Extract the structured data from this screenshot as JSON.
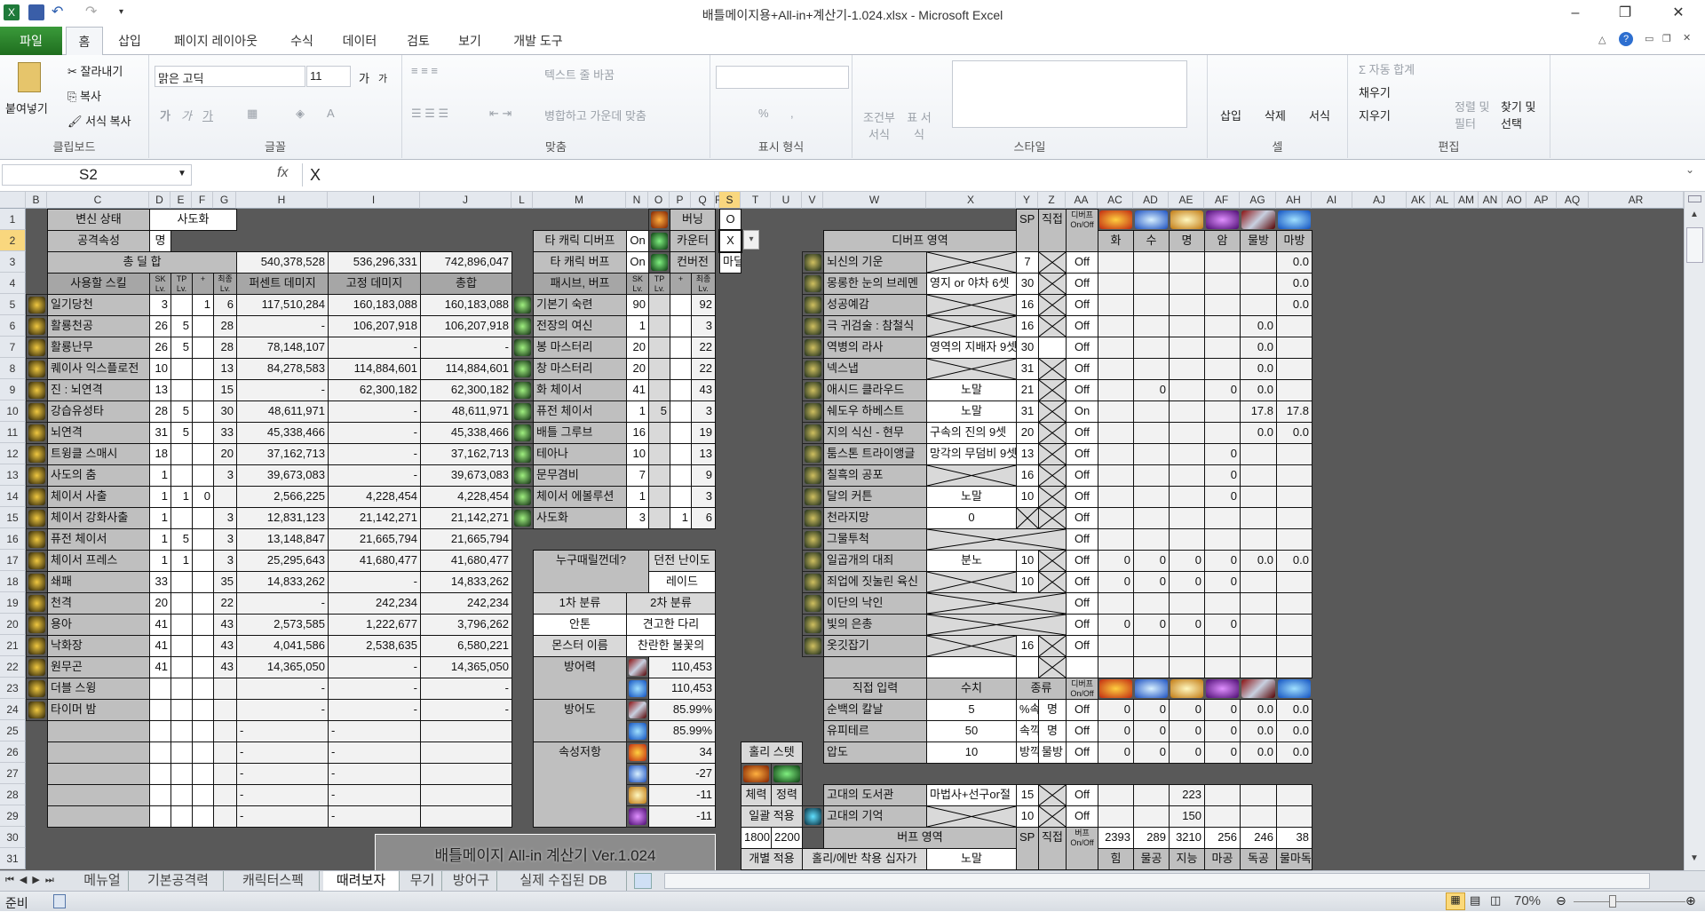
{
  "window": {
    "title": "배틀메이지용+All-in+계산기-1.024.xlsx  -  Microsoft Excel",
    "minimize": "–",
    "restore": "❐",
    "close": "✕"
  },
  "ribbon_tabs": [
    "파일",
    "홈",
    "삽입",
    "페이지 레이아웃",
    "수식",
    "데이터",
    "검토",
    "보기",
    "개발 도구"
  ],
  "ribbon": {
    "clipboard": {
      "paste": "붙여넣기",
      "cut": "잘라내기",
      "copy": "복사",
      "format_painter": "서식 복사",
      "label": "클립보드"
    },
    "font": {
      "name": "맑은 고딕",
      "size": "11",
      "grow": "가",
      "shrink": "가",
      "bold": "가",
      "italic": "가",
      "underline": "가",
      "label": "글꼴"
    },
    "alignment": {
      "wrap": "텍스트 줄 바꿈",
      "merge": "병합하고 가운데 맞춤",
      "label": "맞춤"
    },
    "number": {
      "format": "",
      "percent": "%",
      "comma": ",",
      "label": "표시 형식"
    },
    "styles": {
      "conditional": "조건부 서식",
      "table": "표 서식",
      "label": "스타일"
    },
    "cells": {
      "insert": "삽입",
      "delete": "삭제",
      "format": "서식",
      "label": "셀"
    },
    "editing": {
      "autosum": "Σ 자동 합계",
      "fill": "채우기",
      "clear": "지우기",
      "sort": "정렬 및 필터",
      "find": "찾기 및 선택",
      "label": "편집"
    }
  },
  "formula_bar": {
    "name_box": "S2",
    "fx": "fx",
    "value": "X"
  },
  "grid": {
    "columns": [
      "B",
      "C",
      "D",
      "E",
      "F",
      "G",
      "H",
      "I",
      "J",
      "L",
      "M",
      "N",
      "O",
      "P",
      "Q",
      "R",
      "S",
      "T",
      "U",
      "V",
      "W",
      "X",
      "Y",
      "Z",
      "AA",
      "AC",
      "AD",
      "AE",
      "AF",
      "AG",
      "AH",
      "AI",
      "AJ",
      "AK",
      "AL",
      "AM",
      "AN",
      "AO",
      "AP",
      "AQ",
      "AR"
    ],
    "rows": [
      "1",
      "2",
      "3",
      "4",
      "5",
      "6",
      "7",
      "8",
      "9",
      "10",
      "11",
      "12",
      "13",
      "14",
      "15",
      "16",
      "17",
      "18",
      "19",
      "20",
      "21",
      "22",
      "23",
      "24",
      "25",
      "26",
      "27",
      "28",
      "29",
      "30",
      "31"
    ],
    "selected_cell": "S2",
    "dropdown": "▾"
  },
  "icons": {
    "O1": "burning-icon",
    "O2": "counter-icon",
    "O3": "conversion-icon",
    "AC1": "fire-element-icon",
    "AD1": "water-element-icon",
    "AE1": "light-element-icon",
    "AF1": "dark-element-icon",
    "AG1": "physical-defense-icon",
    "AH1": "magic-defense-icon",
    "AC23": "fire-element-icon",
    "AD23": "water-element-icon",
    "AE23": "light-element-icon",
    "AF23": "dark-element-icon",
    "AG23": "physical-defense-icon",
    "AH23": "magic-defense-icon",
    "N22": "physical-defense-icon",
    "N23": "magic-defense-icon",
    "N24": "physical-defense-icon",
    "N25": "magic-defense-icon",
    "N26": "fire-resist-icon",
    "N27": "water-resist-icon",
    "N28": "light-resist-icon",
    "N29": "dark-resist-icon",
    "T27": "stamina-icon",
    "U27": "spirit-icon",
    "V29": "ancient-memory-icon"
  },
  "cells": {
    "C1": "변신 상태",
    "D1": "사도화",
    "C2": "공격속성",
    "D2": "명",
    "C3": "총 딜 합",
    "H3": "540,378,528",
    "I3": "536,296,331",
    "J3": "742,896,047",
    "C4": "사용할 스킬",
    "D4": "SK Lv.",
    "E4": "TP Lv.",
    "F4": "+",
    "G4": "최종 Lv.",
    "H4": "퍼센트 데미지",
    "I4": "고정 데미지",
    "J4": "총합",
    "C5": "일기당천",
    "D5": "3",
    "F5": "1",
    "G5": "6",
    "H5": "117,510,284",
    "I5": "160,183,088",
    "J5": "160,183,088",
    "C6": "활룡천공",
    "D6": "26",
    "E6": "5",
    "G6": "28",
    "H6": "-",
    "I6": "106,207,918",
    "J6": "106,207,918",
    "C7": "활룡난무",
    "D7": "26",
    "E7": "5",
    "G7": "28",
    "H7": "78,148,107",
    "I7": "-",
    "J7": "-",
    "C8": "퀘이사 익스플로전",
    "D8": "10",
    "G8": "13",
    "H8": "84,278,583",
    "I8": "114,884,601",
    "J8": "114,884,601",
    "C9": "진 : 뇌연격",
    "D9": "13",
    "G9": "15",
    "H9": "-",
    "I9": "62,300,182",
    "J9": "62,300,182",
    "C10": "강습유성타",
    "D10": "28",
    "E10": "5",
    "G10": "30",
    "H10": "48,611,971",
    "I10": "-",
    "J10": "48,611,971",
    "C11": "뇌연격",
    "D11": "31",
    "E11": "5",
    "G11": "33",
    "H11": "45,338,466",
    "I11": "-",
    "J11": "45,338,466",
    "C12": "트윙클 스매시",
    "D12": "18",
    "G12": "20",
    "H12": "37,162,713",
    "I12": "-",
    "J12": "37,162,713",
    "C13": "사도의 춤",
    "D13": "1",
    "G13": "3",
    "H13": "39,673,083",
    "I13": "-",
    "J13": "39,673,083",
    "C14": "체이서 사출",
    "D14": "1",
    "E14": "1",
    "F14": "0",
    "H14": "2,566,225",
    "I14": "4,228,454",
    "J14": "4,228,454",
    "C15": "체이서 강화사출",
    "D15": "1",
    "G15": "3",
    "H15": "12,831,123",
    "I15": "21,142,271",
    "J15": "21,142,271",
    "C16": "퓨전 체이서",
    "D16": "1",
    "E16": "5",
    "G16": "3",
    "H16": "13,148,847",
    "I16": "21,665,794",
    "J16": "21,665,794",
    "C17": "체이서 프레스",
    "D17": "1",
    "E17": "1",
    "G17": "3",
    "H17": "25,295,643",
    "I17": "41,680,477",
    "J17": "41,680,477",
    "C18": "쇄패",
    "D18": "33",
    "G18": "35",
    "H18": "14,833,262",
    "I18": "-",
    "J18": "14,833,262",
    "C19": "천격",
    "D19": "20",
    "G19": "22",
    "H19": "-",
    "I19": "242,234",
    "J19": "242,234",
    "C20": "용아",
    "D20": "41",
    "G20": "43",
    "H20": "2,573,585",
    "I20": "1,222,677",
    "J20": "3,796,262",
    "C21": "낙화장",
    "D21": "41",
    "G21": "43",
    "H21": "4,041,586",
    "I21": "2,538,635",
    "J21": "6,580,221",
    "C22": "원무곤",
    "D22": "41",
    "G22": "43",
    "H22": "14,365,050",
    "I22": "-",
    "J22": "14,365,050",
    "C23": "더블 스윙",
    "H23": "-",
    "I23": "-",
    "J23": "-",
    "C24": "타이머 밤",
    "H24": "-",
    "I24": "-",
    "J24": "-",
    "H25": "-",
    "I25": "-",
    "H26": "-",
    "I26": "-",
    "H27": "-",
    "I27": "-",
    "H28": "-",
    "I28": "-",
    "H29": "-",
    "I29": "-",
    "P1": "버닝",
    "S1": "O",
    "M2": "타 캐릭 디버프",
    "N2": "On",
    "P2": "카운터",
    "S2": "X",
    "M3": "타 캐릭 버프",
    "N3": "On",
    "P3": "컨버전",
    "S3": "마딜",
    "M4": "패시브, 버프",
    "N4": "SK Lv.",
    "O4": "TP Lv.",
    "P4": "+",
    "Q4": "최종 Lv.",
    "M5": "기본기 숙련",
    "N5": "90",
    "Q5": "92",
    "M6": "전장의 여신",
    "N6": "1",
    "Q6": "3",
    "M7": "봉 마스터리",
    "N7": "20",
    "Q7": "22",
    "M8": "창 마스터리",
    "N8": "20",
    "Q8": "22",
    "M9": "화 체이서",
    "N9": "41",
    "Q9": "43",
    "M10": "퓨전 체이서",
    "N10": "1",
    "O10": "5",
    "Q10": "3",
    "M11": "배틀 그루브",
    "N11": "16",
    "Q11": "19",
    "M12": "테아나",
    "N12": "10",
    "Q12": "13",
    "M13": "문무겸비",
    "N13": "7",
    "Q13": "9",
    "M14": "체이서 에볼루션",
    "N14": "1",
    "Q14": "3",
    "M15": "사도화",
    "N15": "3",
    "P15": "1",
    "Q15": "6",
    "M17": "누구때릴껀데?",
    "O17": "던전 난이도",
    "O18": "레이드",
    "M19": "1차 분류",
    "N19": "2차 분류",
    "M20": "안톤",
    "N20": "견고한 다리",
    "M21": "몬스터 이름",
    "N21": "찬란한 불꽃의",
    "M22": "방어력",
    "O22": "110,453",
    "O23": "110,453",
    "M24": "방어도",
    "O24": "85.99%",
    "O25": "85.99%",
    "M26": "속성저항",
    "O26": "34",
    "O27": "-27",
    "O28": "-11",
    "O29": "-11",
    "T26": "홀리 스텟",
    "T28": "체력",
    "U28": "정력",
    "T29": "일괄 적용",
    "T30": "1800",
    "U30": "2200",
    "T31": "개별 적용",
    "Y1": "SP Lv.",
    "Z1": "직접 입력",
    "AA1": "디버프 On/Off",
    "W2": "디버프 영역",
    "AC2": "화",
    "AD2": "수",
    "AE2": "명",
    "AF2": "암",
    "AG2": "물방",
    "AH2": "마방",
    "W3": "뇌신의 기운",
    "Y3": "7",
    "AA3": "Off",
    "AH3": "0.0",
    "W4": "몽롱한 눈의 브레멘",
    "X4": "영지 or 야차 6셋",
    "Y4": "30",
    "AA4": "Off",
    "AH4": "0.0",
    "W5": "성공예감",
    "Y5": "16",
    "AA5": "Off",
    "AH5": "0.0",
    "W6": "극 귀검술 : 참철식",
    "Y6": "16",
    "AA6": "Off",
    "AG6": "0.0",
    "W7": "역병의 라사",
    "X7": "영역의 지배자 9셋",
    "Y7": "30",
    "AA7": "Off",
    "AG7": "0.0",
    "W8": "넥스냅",
    "Y8": "31",
    "AA8": "Off",
    "AG8": "0.0",
    "W9": "애시드 클라우드",
    "X9": "노말",
    "Y9": "21",
    "AA9": "Off",
    "AD9": "0",
    "AF9": "0",
    "AG9": "0.0",
    "W10": "쉐도우 하베스트",
    "X10": "노말",
    "Y10": "31",
    "AA10": "On",
    "AG10": "17.8",
    "AH10": "17.8",
    "W11": "지의 식신 - 현무",
    "X11": "구속의 진의 9셋",
    "Y11": "20",
    "AA11": "Off",
    "AG11": "0.0",
    "AH11": "0.0",
    "W12": "툼스톤 트라이앵글",
    "X12": "망각의 무덤비 9셋",
    "Y12": "13",
    "AA12": "Off",
    "AF12": "0",
    "W13": "칠흑의 공포",
    "Y13": "16",
    "AA13": "Off",
    "AF13": "0",
    "W14": "달의 커튼",
    "X14": "노말",
    "Y14": "10",
    "AA14": "Off",
    "AF14": "0",
    "W15": "천라지망",
    "X15": "0",
    "AA15": "Off",
    "W16": "그물투척",
    "AA16": "Off",
    "W17": "일곱개의 대죄",
    "X17": "분노",
    "Y17": "10",
    "AA17": "Off",
    "AC17": "0",
    "AD17": "0",
    "AE17": "0",
    "AF17": "0",
    "AG17": "0.0",
    "AH17": "0.0",
    "W18": "죄업에 짓눌린 육신",
    "Y18": "10",
    "AA18": "Off",
    "AC18": "0",
    "AD18": "0",
    "AE18": "0",
    "AF18": "0",
    "W19": "이단의 낙인",
    "AA19": "Off",
    "W20": "빛의 은총",
    "AA20": "Off",
    "AC20": "0",
    "AD20": "0",
    "AE20": "0",
    "AF20": "0",
    "W21": "옷깃잡기",
    "Y21": "16",
    "AA21": "Off",
    "W23": "직접 입력",
    "X23": "수치",
    "Y23": "종류",
    "AA23": "디버프 On/Off",
    "W24": "순백의 칼날",
    "X24": "5",
    "Y24": "%속깍",
    "Z24": "명",
    "AA24": "Off",
    "AC24": "0",
    "AD24": "0",
    "AE24": "0",
    "AF24": "0",
    "AG24": "0.0",
    "AH24": "0.0",
    "W25": "유피테르",
    "X25": "50",
    "Y25": "속깍",
    "Z25": "명",
    "AA25": "Off",
    "AC25": "0",
    "AD25": "0",
    "AE25": "0",
    "AF25": "0",
    "AG25": "0.0",
    "AH25": "0.0",
    "W26": "압도",
    "X26": "10",
    "Y26": "방깍",
    "Z26": "물방",
    "AA26": "Off",
    "AC26": "0",
    "AD26": "0",
    "AE26": "0",
    "AF26": "0",
    "AG26": "0.0",
    "AH26": "0.0",
    "W28": "고대의 도서관",
    "X28": "마법사+선구or절",
    "Y28": "15",
    "AA28": "Off",
    "AE28": "223",
    "W29": "고대의 기억",
    "Y29": "10",
    "AA29": "Off",
    "AE29": "150",
    "W30": "버프 영역",
    "Y30": "SP Lv.",
    "Z30": "직접 입력",
    "AA30": "버프 On/Off",
    "AC30": "2393",
    "AD30": "289",
    "AE30": "3210",
    "AF30": "256",
    "AG30": "246",
    "AH30": "38",
    "V31": "홀리/에반 착용 십자가",
    "X31": "노말",
    "AC31": "힘",
    "AD31": "물공",
    "AE31": "지능",
    "AF31": "마공",
    "AG31": "독공",
    "AH31": "물마독%"
  },
  "title_box": "배틀메이지 All-in 계산기 Ver.1.024",
  "sheet_tabs": [
    {
      "label": "메뉴얼",
      "active": false
    },
    {
      "label": "기본공격력",
      "active": false
    },
    {
      "label": "캐릭터스펙",
      "active": false
    },
    {
      "label": "때려보자",
      "active": true
    },
    {
      "label": "무기",
      "active": false
    },
    {
      "label": "방어구",
      "active": false
    },
    {
      "label": "실제 수집된 DB",
      "active": false
    }
  ],
  "status": {
    "ready": "준비",
    "zoom": "70%"
  },
  "colors": {
    "sheet_bg": "#595959",
    "label_gray": "#bfbfbf",
    "header_gray": "#a6a6a6",
    "value_light": "#f2f2f2",
    "file_tab": "#2e8b2e",
    "selection": "#217346"
  }
}
